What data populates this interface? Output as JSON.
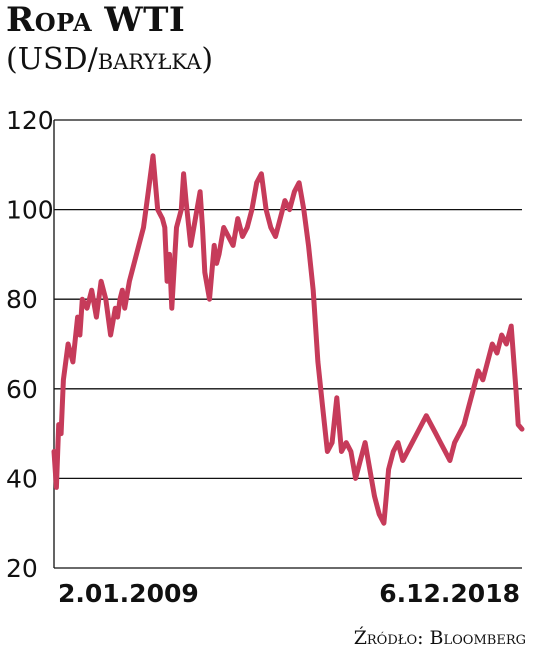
{
  "header": {
    "title": "Ropa WTI",
    "subtitle_prefix": "(USD/",
    "subtitle_unit": "baryłka",
    "subtitle_suffix": ")"
  },
  "footer": {
    "source": "Źródło: Bloomberg"
  },
  "colors": {
    "line": "#c63b5a",
    "grid": "#111111"
  },
  "chart_data": {
    "type": "line",
    "title": "Ropa WTI",
    "ylabel": "(USD/baryłka)",
    "xlabel": "",
    "ylim": [
      20,
      120
    ],
    "yticks": [
      20,
      40,
      60,
      80,
      100,
      120
    ],
    "xtick_labels": [
      "2.01.2009",
      "6.12.2018"
    ],
    "grid": "horizontal",
    "series": [
      {
        "name": "",
        "x": [
          2009.0,
          2009.05,
          2009.1,
          2009.15,
          2009.2,
          2009.3,
          2009.4,
          2009.5,
          2009.55,
          2009.6,
          2009.7,
          2009.8,
          2009.9,
          2010.0,
          2010.1,
          2010.2,
          2010.3,
          2010.35,
          2010.4,
          2010.45,
          2010.5,
          2010.6,
          2010.7,
          2010.8,
          2010.9,
          2011.0,
          2011.1,
          2011.2,
          2011.3,
          2011.35,
          2011.4,
          2011.45,
          2011.5,
          2011.6,
          2011.7,
          2011.75,
          2011.8,
          2011.9,
          2012.0,
          2012.1,
          2012.15,
          2012.2,
          2012.3,
          2012.4,
          2012.45,
          2012.5,
          2012.6,
          2012.7,
          2012.8,
          2012.9,
          2013.0,
          2013.1,
          2013.2,
          2013.3,
          2013.4,
          2013.5,
          2013.6,
          2013.7,
          2013.8,
          2013.9,
          2014.0,
          2014.1,
          2014.2,
          2014.3,
          2014.4,
          2014.5,
          2014.6,
          2014.7,
          2014.8,
          2014.9,
          2015.0,
          2015.05,
          2015.1,
          2015.2,
          2015.3,
          2015.4,
          2015.5,
          2015.6,
          2015.7,
          2015.8,
          2015.9,
          2016.0,
          2016.05,
          2016.1,
          2016.2,
          2016.3,
          2016.4,
          2016.5,
          2016.6,
          2016.7,
          2016.8,
          2016.9,
          2017.0,
          2017.1,
          2017.2,
          2017.3,
          2017.4,
          2017.5,
          2017.6,
          2017.7,
          2017.8,
          2017.9,
          2018.0,
          2018.1,
          2018.2,
          2018.3,
          2018.4,
          2018.5,
          2018.6,
          2018.7,
          2018.8,
          2018.85,
          2018.93
        ],
        "y": [
          46,
          38,
          52,
          50,
          62,
          70,
          66,
          76,
          72,
          80,
          78,
          82,
          76,
          84,
          80,
          72,
          78,
          76,
          80,
          82,
          78,
          84,
          88,
          92,
          96,
          104,
          112,
          100,
          98,
          96,
          84,
          90,
          78,
          96,
          100,
          108,
          102,
          92,
          98,
          104,
          96,
          86,
          80,
          92,
          88,
          90,
          96,
          94,
          92,
          98,
          94,
          96,
          100,
          106,
          108,
          100,
          96,
          94,
          98,
          102,
          100,
          104,
          106,
          100,
          92,
          82,
          66,
          56,
          46,
          48,
          58,
          52,
          46,
          48,
          46,
          40,
          44,
          48,
          42,
          36,
          32,
          30,
          36,
          42,
          46,
          48,
          44,
          46,
          48,
          50,
          52,
          54,
          52,
          50,
          48,
          46,
          44,
          48,
          50,
          52,
          56,
          60,
          64,
          62,
          66,
          70,
          68,
          72,
          70,
          74,
          60,
          52,
          51
        ]
      }
    ]
  }
}
